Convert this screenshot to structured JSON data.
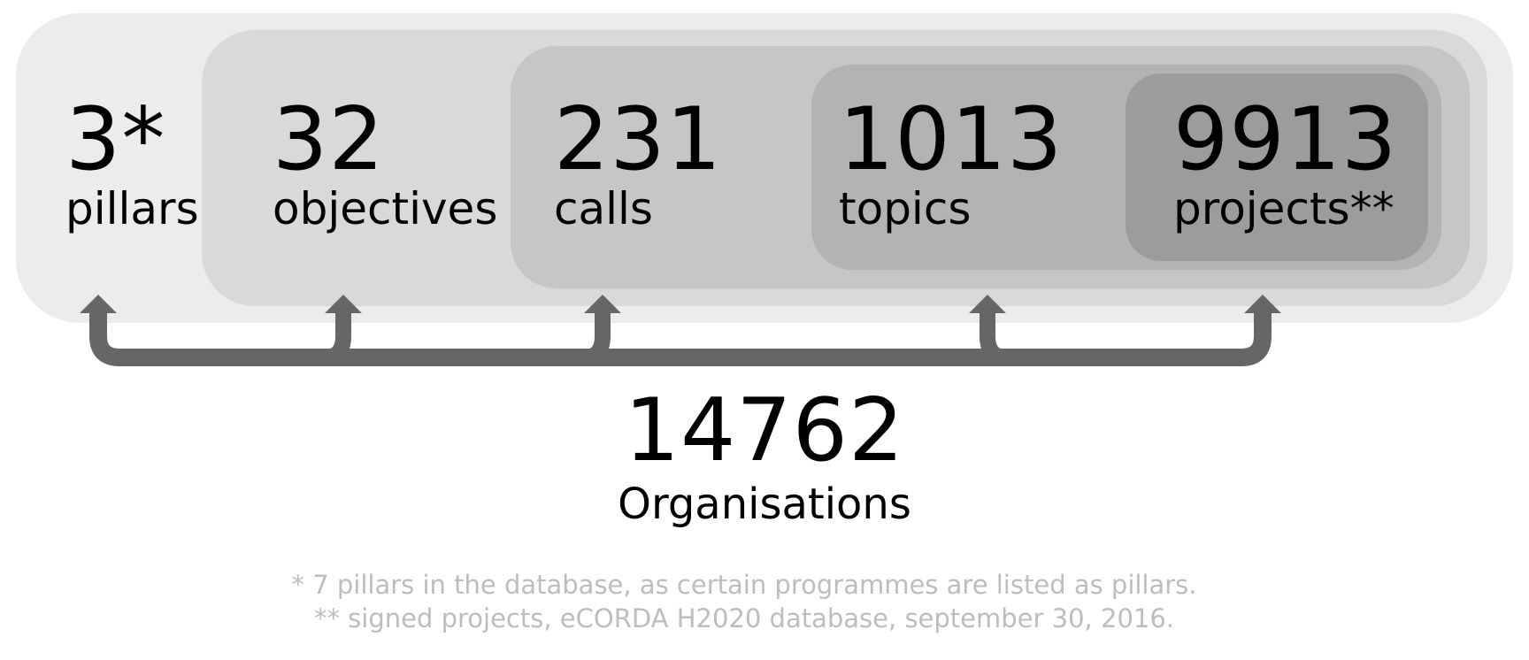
{
  "stats": [
    {
      "value": "3*",
      "label": "pillars"
    },
    {
      "value": "32",
      "label": "objectives"
    },
    {
      "value": "231",
      "label": "calls"
    },
    {
      "value": "1013",
      "label": "topics"
    },
    {
      "value": "9913",
      "label": "projects**"
    }
  ],
  "organisations": {
    "value": "14762",
    "label": "Organisations"
  },
  "footnotes": [
    "* 7 pillars in the database, as certain programmes are listed as pillars.",
    "** signed projects, eCORDA H2020 database, september 30, 2016."
  ],
  "colors": {
    "level1": "#ececec",
    "level2": "#d9d9d9",
    "level3": "#c6c6c6",
    "level4": "#b3b3b3",
    "level5": "#9c9c9c",
    "connector": "#666666",
    "footnote": "#bdbdbd"
  }
}
